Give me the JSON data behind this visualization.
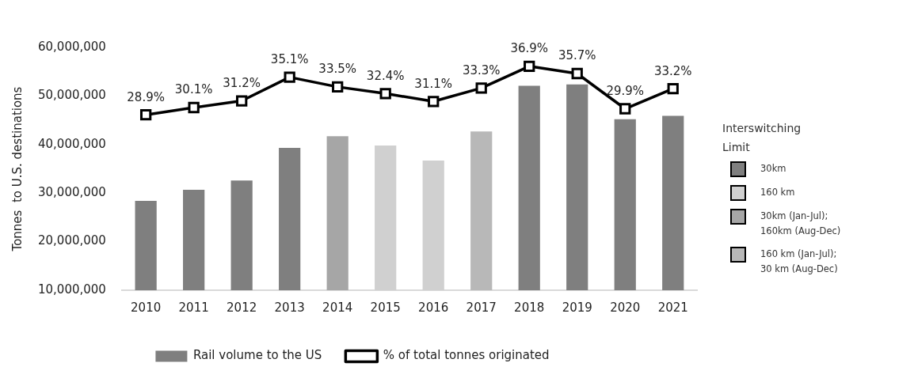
{
  "chart_data": {
    "type": "bar",
    "ylabel": "Tonnes  to U.S. destinations",
    "legend": "bottom",
    "legend_title": "Interswitching Limit",
    "categories": [
      "2010",
      "2011",
      "2012",
      "2013",
      "2014",
      "2015",
      "2016",
      "2017",
      "2018",
      "2019",
      "2020",
      "2021"
    ],
    "ylim": [
      10000000,
      60000000
    ],
    "yticks": [
      {
        "value": 10000000,
        "label": "10,000,000"
      },
      {
        "value": 20000000,
        "label": "20,000,000"
      },
      {
        "value": 30000000,
        "label": "30,000,000"
      },
      {
        "value": 40000000,
        "label": "40,000,000"
      },
      {
        "value": 50000000,
        "label": "50,000,000"
      },
      {
        "value": 60000000,
        "label": "60,000,000"
      }
    ],
    "series": [
      {
        "name": "Rail volume to the US",
        "color": "#7f7f7f",
        "colors": [
          "#7f7f7f",
          "#7f7f7f",
          "#7f7f7f",
          "#7f7f7f",
          "#a6a6a6",
          "#d0d0d0",
          "#d0d0d0",
          "#b8b8b8",
          "#7f7f7f",
          "#7f7f7f",
          "#7f7f7f",
          "#7f7f7f"
        ],
        "values": [
          28400000,
          30700000,
          32600000,
          39300000,
          41700000,
          39800000,
          36700000,
          42700000,
          52100000,
          52400000,
          45200000,
          45900000
        ]
      },
      {
        "name": "% of total tonnes originated",
        "type": "line",
        "axis": "y2",
        "color": "#000000",
        "marker": "square",
        "values": [
          28.9,
          30.1,
          31.2,
          35.1,
          33.5,
          32.4,
          31.1,
          33.3,
          36.9,
          35.7,
          29.9,
          33.2
        ],
        "value_labels": [
          "28.9%",
          "30.1%",
          "31.2%",
          "35.1%",
          "33.5%",
          "32.4%",
          "31.1%",
          "33.3%",
          "36.9%",
          "35.7%",
          "29.9%",
          "33.2%"
        ]
      }
    ],
    "annotations": [
      "30km",
      "160 km",
      "30km (Jan-Jul); 160km (Aug-Dec)",
      "160 km (Jan-Jul); 30 km (Aug-Dec)"
    ]
  }
}
